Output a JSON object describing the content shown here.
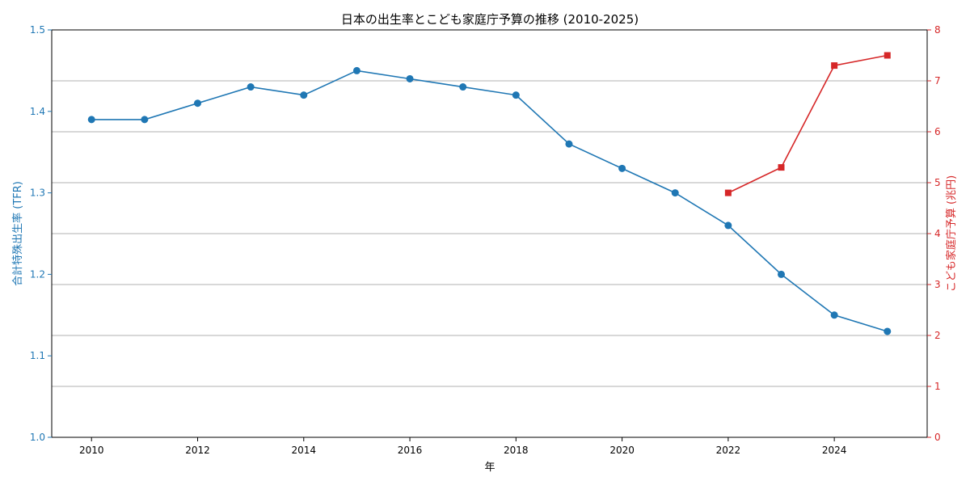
{
  "chart_data": {
    "type": "line",
    "title": "日本の出生率とこども家庭庁予算の推移 (2010-2025)",
    "xlabel": "年",
    "x_ticks": [
      2010,
      2012,
      2014,
      2016,
      2018,
      2020,
      2022,
      2024
    ],
    "xlim": [
      2009.25,
      2025.75
    ],
    "grid": "horizontal (right axis)",
    "y_left": {
      "label": "合計特殊出生率 (TFR)",
      "ylim": [
        1.0,
        1.5
      ],
      "ticks": [
        "1.0",
        "1.1",
        "1.2",
        "1.3",
        "1.4",
        "1.5"
      ],
      "color": "#1f77b4"
    },
    "y_right": {
      "label": "こども家庭庁予算 (兆円)",
      "ylim": [
        0,
        8
      ],
      "ticks": [
        "0",
        "1",
        "2",
        "3",
        "4",
        "5",
        "6",
        "7",
        "8"
      ],
      "color": "#d62728"
    },
    "series": [
      {
        "axis": "left",
        "color": "#1f77b4",
        "marker": "circle",
        "x": [
          2010,
          2011,
          2012,
          2013,
          2014,
          2015,
          2016,
          2017,
          2018,
          2019,
          2020,
          2021,
          2022,
          2023,
          2024,
          2025
        ],
        "values": [
          1.39,
          1.39,
          1.41,
          1.43,
          1.42,
          1.45,
          1.44,
          1.43,
          1.42,
          1.36,
          1.33,
          1.3,
          1.26,
          1.2,
          1.15,
          1.13
        ]
      },
      {
        "axis": "right",
        "color": "#d62728",
        "marker": "square",
        "x": [
          2022,
          2023,
          2024,
          2025
        ],
        "values": [
          4.8,
          5.3,
          7.3,
          7.5
        ]
      }
    ]
  }
}
